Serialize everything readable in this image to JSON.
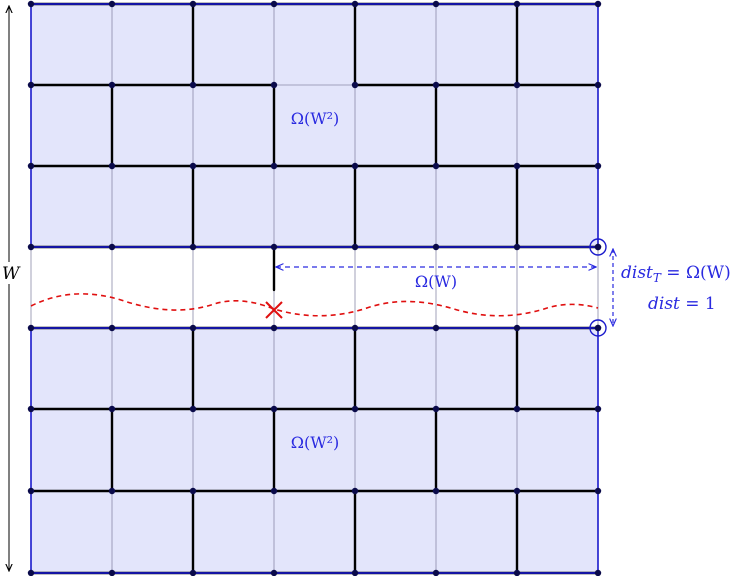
{
  "colors": {
    "region_fill": "#e3e5fb",
    "region_border": "#1a1acc",
    "grid_thin": "#8a8aa8",
    "grid_bold": "#000000",
    "node": "#0a0a4a",
    "accent_blue": "#2a2ae0",
    "path_red": "#e01010"
  },
  "labels": {
    "w_axis": "W",
    "region_top": "Ω(W²)",
    "region_bottom": "Ω(W²)",
    "horizontal_distance": "Ω(W)",
    "dist_t": "dist_T = Ω(W)",
    "dist_t_lhs": "dist",
    "dist_t_sub": "T",
    "dist_t_rhs": " = Ω(W)",
    "dist": "dist = 1",
    "dist_lhs": "dist",
    "dist_rhs": " = 1"
  },
  "icons": {
    "cut_marker": "x-mark-icon",
    "endpoint_marker": "circled-dot-icon"
  }
}
